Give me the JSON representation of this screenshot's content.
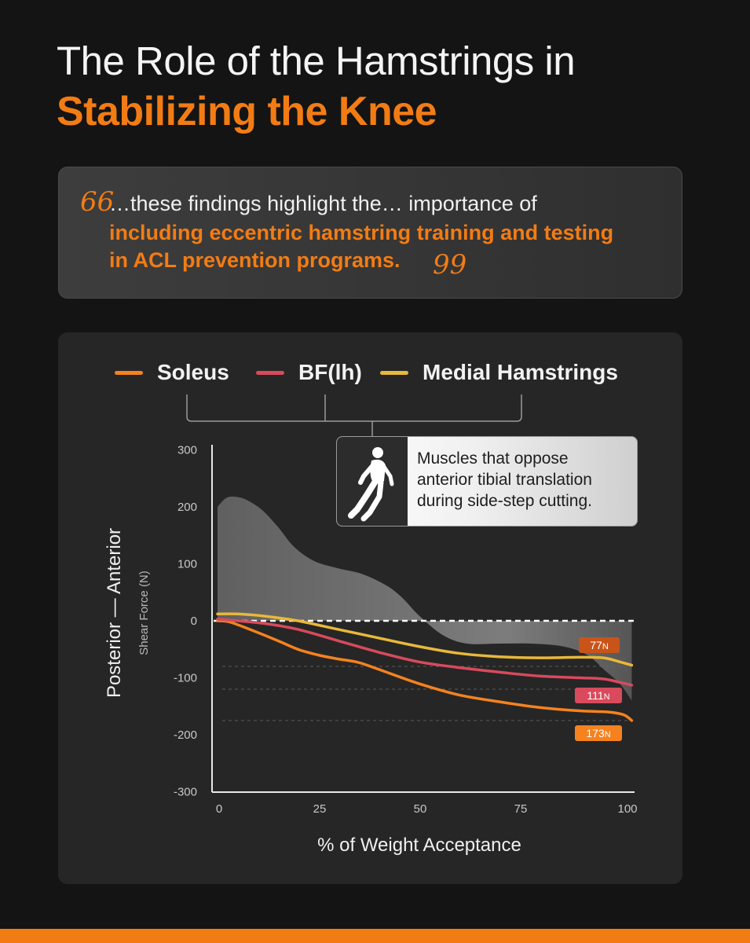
{
  "header": {
    "title_line1": "The Role of the Hamstrings in",
    "title_line2": "Stabilizing the Knee"
  },
  "quote": {
    "open_mark": "66",
    "close_mark": "99",
    "line1": "…these findings highlight the… importance of",
    "line2": "including eccentric hamstring training and testing",
    "line3": "in ACL prevention programs."
  },
  "callout": {
    "icon": "runner-silhouette-icon",
    "line1": "Muscles that oppose",
    "line2": "anterior tibial translation",
    "line3": "during side-step cutting."
  },
  "colors": {
    "accent": "#f27c14",
    "soleus": "#f5821f",
    "bf_lh": "#d84a5c",
    "medial_hamstrings": "#e8b83a",
    "total_area": "#8a8a8a"
  },
  "chart_data": {
    "type": "line",
    "xlabel": "% of Weight Acceptance",
    "ylabel": "Posterior — Anterior",
    "ylabel_sub": "Shear Force (N)",
    "xlim": [
      0,
      103
    ],
    "ylim": [
      -300,
      300
    ],
    "x_ticks": [
      0,
      25,
      50,
      75,
      100
    ],
    "y_ticks": [
      300,
      200,
      100,
      0,
      -100,
      -200,
      -300
    ],
    "reference_lines": [
      0,
      -80,
      -120,
      -175
    ],
    "legend_position": "top",
    "series": [
      {
        "name": "Soleus",
        "color": "#f5821f",
        "x": [
          0,
          3,
          8,
          15,
          20,
          25,
          30,
          35,
          40,
          50,
          60,
          70,
          80,
          90,
          97,
          101,
          103
        ],
        "y": [
          0,
          -2,
          -15,
          -35,
          -50,
          -60,
          -67,
          -73,
          -85,
          -110,
          -130,
          -142,
          -152,
          -158,
          -160,
          -165,
          -175
        ],
        "end_label": "173",
        "end_unit": "N"
      },
      {
        "name": "BF(lh)",
        "color": "#d84a5c",
        "x": [
          0,
          5,
          12,
          20,
          30,
          40,
          50,
          60,
          70,
          80,
          90,
          96,
          100,
          103
        ],
        "y": [
          3,
          0,
          -5,
          -15,
          -35,
          -55,
          -72,
          -82,
          -90,
          -97,
          -100,
          -102,
          -108,
          -113
        ],
        "end_label": "111",
        "end_unit": "N"
      },
      {
        "name": "Medial Hamstrings",
        "color": "#e8b83a",
        "x": [
          0,
          5,
          12,
          20,
          30,
          40,
          50,
          60,
          70,
          80,
          90,
          96,
          100,
          103
        ],
        "y": [
          12,
          12,
          8,
          0,
          -15,
          -30,
          -45,
          -57,
          -63,
          -65,
          -64,
          -65,
          -72,
          -78
        ],
        "end_label": "77",
        "end_unit": "N"
      }
    ],
    "area": {
      "name": "",
      "x": [
        0,
        2,
        4,
        7,
        11,
        15,
        19,
        24,
        30,
        36,
        42,
        46,
        50,
        56,
        62,
        70,
        78,
        86,
        92,
        96,
        100,
        103
      ],
      "y": [
        200,
        215,
        218,
        213,
        195,
        165,
        130,
        105,
        92,
        82,
        62,
        40,
        10,
        -25,
        -40,
        -40,
        -40,
        -45,
        -60,
        -85,
        -110,
        -140
      ]
    }
  }
}
